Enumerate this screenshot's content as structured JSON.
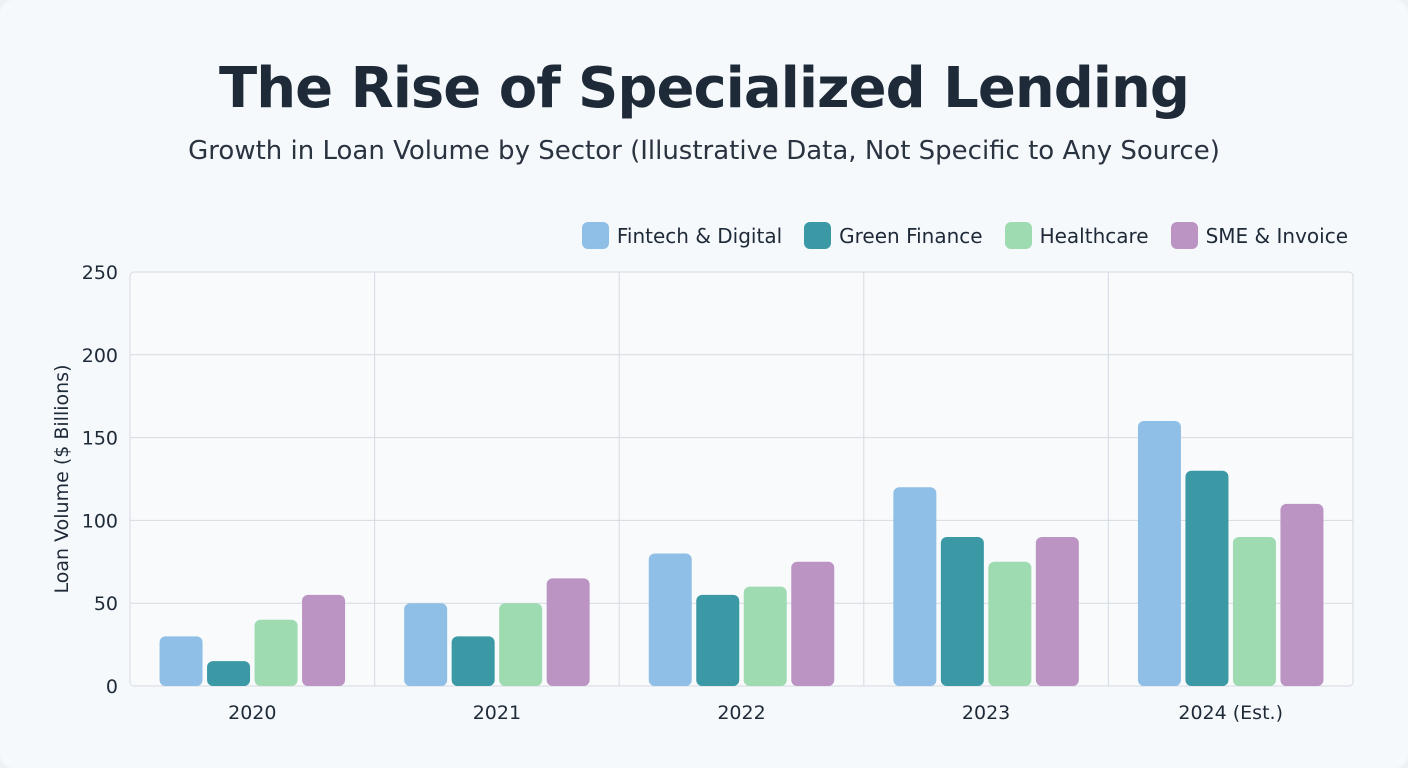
{
  "chart_data": {
    "type": "bar",
    "title": "The Rise of Specialized Lending",
    "subtitle": "Growth in Loan Volume by Sector (Illustrative Data, Not Specific to Any Source)",
    "xlabel": "",
    "ylabel": "Loan Volume ($ Billions)",
    "ylim": [
      0,
      250
    ],
    "yticks": [
      0,
      50,
      100,
      150,
      200,
      250
    ],
    "grid": true,
    "legend_position": "top-right",
    "categories": [
      "2020",
      "2021",
      "2022",
      "2023",
      "2024 (Est.)"
    ],
    "series": [
      {
        "name": "Fintech & Digital",
        "color": "#8fbfe6",
        "values": [
          30,
          50,
          80,
          120,
          160
        ]
      },
      {
        "name": "Green Finance",
        "color": "#3a99a5",
        "values": [
          15,
          30,
          55,
          90,
          130
        ]
      },
      {
        "name": "Healthcare",
        "color": "#9fdbb0",
        "values": [
          40,
          50,
          60,
          75,
          90
        ]
      },
      {
        "name": "SME & Invoice",
        "color": "#bb94c4",
        "values": [
          55,
          65,
          75,
          90,
          110
        ]
      }
    ]
  }
}
